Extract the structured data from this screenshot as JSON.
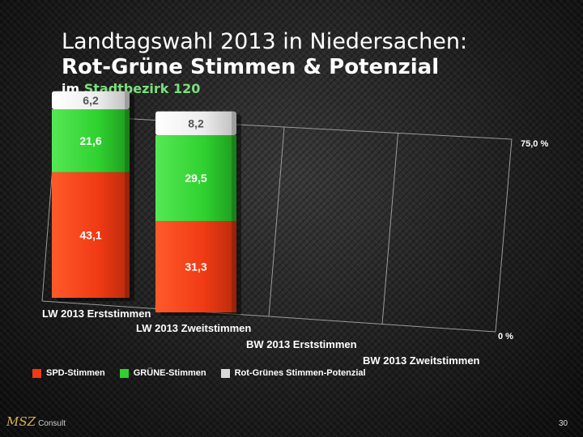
{
  "header": {
    "line1": "Landtagswahl 2013 in Niedersachen:",
    "line2": "Rot-Grüne Stimmen & Potenzial",
    "line3_prefix": "im",
    "line3_highlight": "Stadtbezirk 120"
  },
  "chart_data": {
    "type": "bar",
    "stacked": true,
    "categories": [
      "LW 2013 Erststimmen",
      "LW 2013 Zweitstimmen",
      "BW 2013 Erststimmen",
      "BW 2013 Zweitstimmen"
    ],
    "series": [
      {
        "name": "SPD-Stimmen",
        "values": [
          43.1,
          31.3,
          null,
          null
        ],
        "labels": [
          "43,1",
          "31,3",
          "",
          ""
        ]
      },
      {
        "name": "GRÜNE-Stimmen",
        "values": [
          21.6,
          29.5,
          null,
          null
        ],
        "labels": [
          "21,6",
          "29,5",
          "",
          ""
        ]
      },
      {
        "name": "Rot-Grünes Stimmen-Potenzial",
        "values": [
          6.2,
          8.2,
          null,
          null
        ],
        "labels": [
          "6,2",
          "8,2",
          "",
          ""
        ]
      }
    ],
    "ylim": [
      0,
      75
    ],
    "ytick_labels": [
      "0 %",
      "75,0 %"
    ],
    "colors": [
      "#f03a14",
      "#2fd12f",
      "#e8e8e8"
    ]
  },
  "legend": [
    {
      "label": "SPD-Stimmen",
      "color": "#f03a14"
    },
    {
      "label": "GRÜNE-Stimmen",
      "color": "#2fd12f"
    },
    {
      "label": "Rot-Grünes Stimmen-Potenzial",
      "color": "#d8d8d8"
    }
  ],
  "footer": {
    "logo_text": "MSZ",
    "logo_sub": "Consult",
    "page_number": "30"
  }
}
